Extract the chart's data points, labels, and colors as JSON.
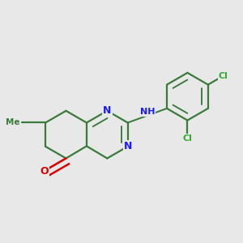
{
  "bg_color": "#e8e8e8",
  "bond_color": "#3a7a3a",
  "bond_width": 1.6,
  "atom_colors": {
    "N": "#1a1aff",
    "O": "#dd0000",
    "Cl": "#33aa33",
    "H": "#888888",
    "C": "#3a7a3a"
  },
  "figsize": [
    3.0,
    3.0
  ],
  "dpi": 100
}
